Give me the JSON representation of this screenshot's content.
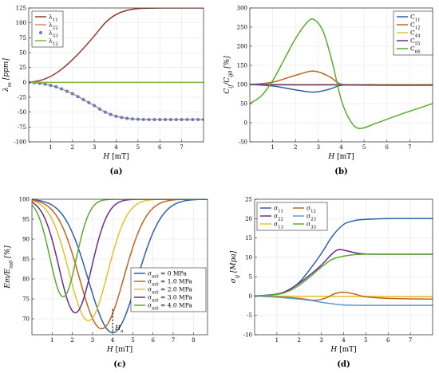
{
  "chart_data": [
    {
      "id": "a",
      "type": "line",
      "caption": "(a)",
      "xlabel": "H [mT]",
      "ylabel": "λ_m [ppm]",
      "xlim": [
        0,
        8
      ],
      "ylim": [
        -100,
        125
      ],
      "xticks": [
        1,
        2,
        3,
        4,
        5,
        6,
        7
      ],
      "yticks": [
        -100,
        -75,
        -50,
        -25,
        0,
        25,
        50,
        75,
        100,
        125
      ],
      "legend_position": "top-left",
      "series": [
        {
          "name": "λ11",
          "color": "#8c3b2e",
          "style": "line",
          "x": [
            0,
            0.5,
            1,
            1.5,
            2,
            2.5,
            3,
            3.5,
            4,
            4.5,
            5,
            6,
            7,
            8
          ],
          "y": [
            0,
            3,
            10,
            22,
            38,
            57,
            78,
            100,
            114,
            121,
            124,
            125,
            125,
            125
          ]
        },
        {
          "name": "λ22",
          "color": "#e8856a",
          "style": "line",
          "x": [
            0,
            0.5,
            1,
            1.5,
            2,
            2.5,
            3,
            3.5,
            4,
            4.5,
            5,
            6,
            7,
            8
          ],
          "y": [
            0,
            -1.5,
            -5,
            -11,
            -19,
            -29,
            -39,
            -50,
            -57,
            -60.5,
            -62,
            -62.5,
            -62.5,
            -62.5
          ]
        },
        {
          "name": "λ33",
          "color": "#5b7ec9",
          "style": "markers",
          "x": [
            0,
            0.25,
            0.5,
            0.75,
            1,
            1.25,
            1.5,
            1.75,
            2,
            2.25,
            2.5,
            2.75,
            3,
            3.25,
            3.5,
            3.75,
            4,
            4.25,
            4.5,
            4.75,
            5,
            5.25,
            5.5,
            5.75,
            6,
            6.25,
            6.5,
            6.75,
            7,
            7.25,
            7.5,
            7.75,
            8
          ],
          "y": [
            0,
            -0.5,
            -1.5,
            -3,
            -5,
            -7.5,
            -11,
            -15,
            -19,
            -24,
            -29,
            -34,
            -39,
            -45,
            -50,
            -54,
            -57,
            -59,
            -60.5,
            -61.5,
            -62,
            -62.3,
            -62.5,
            -62.5,
            -62.5,
            -62.5,
            -62.5,
            -62.5,
            -62.5,
            -62.5,
            -62.5,
            -62.5,
            -62.5
          ]
        },
        {
          "name": "λ12",
          "color": "#7fb83b",
          "style": "line",
          "x": [
            0,
            2,
            4,
            6,
            8
          ],
          "y": [
            0,
            0,
            0,
            0,
            0
          ]
        }
      ]
    },
    {
      "id": "b",
      "type": "line",
      "caption": "(b)",
      "xlabel": "H [mT]",
      "ylabel": "C_ij/C_ij0 [%]",
      "xlim": [
        0,
        8
      ],
      "ylim": [
        -50,
        300
      ],
      "xticks": [
        1,
        2,
        3,
        4,
        5,
        6,
        7
      ],
      "yticks": [
        -50,
        0,
        50,
        100,
        150,
        200,
        250,
        300
      ],
      "legend_position": "top-right",
      "series": [
        {
          "name": "C11",
          "color": "#2f5fa8",
          "x": [
            0,
            1,
            2,
            2.8,
            3.5,
            4,
            5,
            6,
            8
          ],
          "y": [
            100,
            96,
            86,
            80,
            88,
            98,
            100,
            100,
            100
          ]
        },
        {
          "name": "C12",
          "color": "#c0651c",
          "x": [
            0,
            1,
            2,
            2.8,
            3.5,
            4,
            5,
            8
          ],
          "y": [
            100,
            106,
            124,
            135,
            120,
            101,
            99,
            99
          ]
        },
        {
          "name": "C44",
          "color": "#e4c02f",
          "x": [
            0,
            2,
            4,
            6,
            8
          ],
          "y": [
            100,
            100,
            100,
            100,
            100
          ]
        },
        {
          "name": "C55",
          "color": "#6a2d8f",
          "x": [
            0,
            2,
            4,
            6,
            8
          ],
          "y": [
            100,
            99,
            99,
            98,
            98
          ]
        },
        {
          "name": "C66",
          "color": "#5caa2e",
          "x": [
            0,
            0.5,
            1,
            1.5,
            2,
            2.5,
            2.8,
            3.2,
            3.6,
            4,
            4.4,
            4.8,
            5.5,
            6.5,
            8
          ],
          "y": [
            50,
            70,
            110,
            165,
            220,
            262,
            270,
            240,
            160,
            60,
            5,
            -15,
            -2,
            20,
            50
          ]
        }
      ]
    },
    {
      "id": "c",
      "type": "line",
      "caption": "(c)",
      "xlabel": "H [mT]",
      "ylabel": "Em/E_m0 [%]",
      "xlim": [
        0,
        8.7
      ],
      "ylim": [
        66,
        100
      ],
      "xticks": [
        1,
        2,
        3,
        4,
        5,
        6,
        7,
        8
      ],
      "yticks": [
        70,
        75,
        80,
        85,
        90,
        95,
        100
      ],
      "legend_position": "bottom-right",
      "annotation": {
        "text": "H_a",
        "x": 4,
        "y": 66.8
      },
      "series": [
        {
          "name": "σm0 = 0 MPa",
          "color": "#2f5fa8",
          "mu": 4.0,
          "sigma": 1.2,
          "depth": 33.5
        },
        {
          "name": "σm0 = 1.0 MPa",
          "color": "#c0651c",
          "mu": 3.45,
          "sigma": 1.1,
          "depth": 32.5
        },
        {
          "name": "σm0 = 2.0 MPa",
          "color": "#e4c02f",
          "mu": 2.8,
          "sigma": 0.95,
          "depth": 30.5
        },
        {
          "name": "σm0 = 3.0 MPa",
          "color": "#6a2d8f",
          "mu": 2.15,
          "sigma": 0.8,
          "depth": 28.5
        },
        {
          "name": "σm0 = 4.0 MPa",
          "color": "#5caa2e",
          "mu": 1.55,
          "sigma": 0.65,
          "depth": 24.5
        }
      ]
    },
    {
      "id": "d",
      "type": "line",
      "caption": "(d)",
      "xlabel": "H [mT]",
      "ylabel": "σ_ij [Mpa]",
      "xlim": [
        0,
        8
      ],
      "ylim": [
        -10,
        25
      ],
      "xticks": [
        1,
        2,
        3,
        4,
        5,
        6,
        7
      ],
      "yticks": [
        -10,
        -5,
        0,
        5,
        10,
        15,
        20,
        25
      ],
      "legend_position": "top-left",
      "series": [
        {
          "name": "σ11",
          "color": "#2f5fa8",
          "x": [
            0,
            1,
            1.5,
            2,
            2.5,
            3,
            3.5,
            4,
            4.5,
            5,
            6,
            8
          ],
          "y": [
            0,
            0.5,
            1.5,
            3.5,
            7,
            11,
            15.5,
            18.5,
            19.5,
            19.8,
            20,
            20
          ]
        },
        {
          "name": "σ22",
          "color": "#6a2d8f",
          "x": [
            0,
            1,
            1.5,
            2,
            2.5,
            3,
            3.5,
            3.8,
            4.2,
            4.7,
            5.5,
            8
          ],
          "y": [
            0,
            0.5,
            1.5,
            3.3,
            5.5,
            8,
            11,
            12,
            11.6,
            11,
            10.8,
            10.8
          ]
        },
        {
          "name": "σ13",
          "color": "#e4c02f",
          "x": [
            0,
            4,
            8
          ],
          "y": [
            0,
            -0.1,
            -0.2
          ]
        },
        {
          "name": "σ12",
          "color": "#c0651c",
          "x": [
            0,
            1,
            2,
            2.7,
            3.2,
            3.6,
            4,
            4.5,
            5,
            6,
            8
          ],
          "y": [
            0,
            -0.2,
            -0.6,
            -1.1,
            -0.5,
            0.6,
            1,
            0.5,
            -0.2,
            -0.6,
            -0.8
          ]
        },
        {
          "name": "σ23",
          "color": "#5b9bd5",
          "x": [
            0,
            1,
            2,
            2.6,
            3,
            3.5,
            4,
            5,
            6,
            8
          ],
          "y": [
            0,
            -0.3,
            -0.8,
            -1.2,
            -1.6,
            -2,
            -2.3,
            -2.4,
            -2.4,
            -2.4
          ]
        },
        {
          "name": "σ33",
          "color": "#5caa2e",
          "x": [
            0,
            1,
            1.5,
            2,
            2.5,
            3,
            3.5,
            4,
            4.5,
            5,
            6,
            8
          ],
          "y": [
            0,
            0.4,
            1.2,
            2.8,
            5,
            7.5,
            9.5,
            10.3,
            10.7,
            10.8,
            10.8,
            10.8
          ]
        }
      ]
    }
  ]
}
